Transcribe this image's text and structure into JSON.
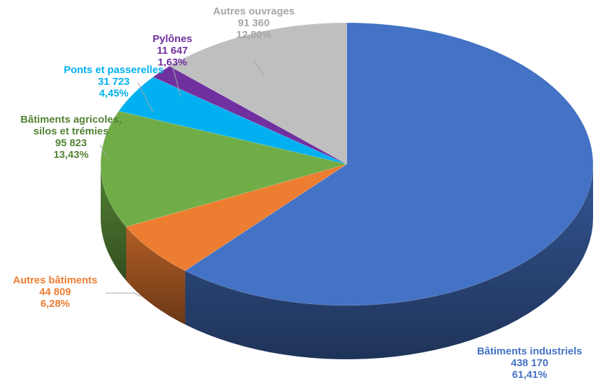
{
  "chart_data": {
    "type": "pie",
    "style": "3d",
    "categories": [
      "Bâtiments industriels",
      "Autres bâtiments",
      "Bâtiments agricoles, silos et trémies",
      "Ponts et passerelles",
      "Pylônes",
      "Autres ouvrages"
    ],
    "series": [
      {
        "values": [
          438170,
          44809,
          95823,
          31723,
          11647,
          91360
        ],
        "percent_labels": [
          "61,41%",
          "6,28%",
          "13,43%",
          "4,45%",
          "1,63%",
          "12,80%"
        ],
        "value_labels": [
          "438 170",
          "44 809",
          "95 823",
          "31 723",
          "11 647",
          "91 360"
        ]
      }
    ],
    "colors": [
      "#4472c4",
      "#ed7d31",
      "#70ad47",
      "#00b0f0",
      "#7030a0",
      "#bfbfbf"
    ],
    "label_colors": [
      "#4472c4",
      "#ed7d31",
      "#548235",
      "#00b0f0",
      "#7030a0",
      "#a6a6a6"
    ],
    "legend": "none",
    "data_labels": "category, value and percentage beside each slice"
  }
}
